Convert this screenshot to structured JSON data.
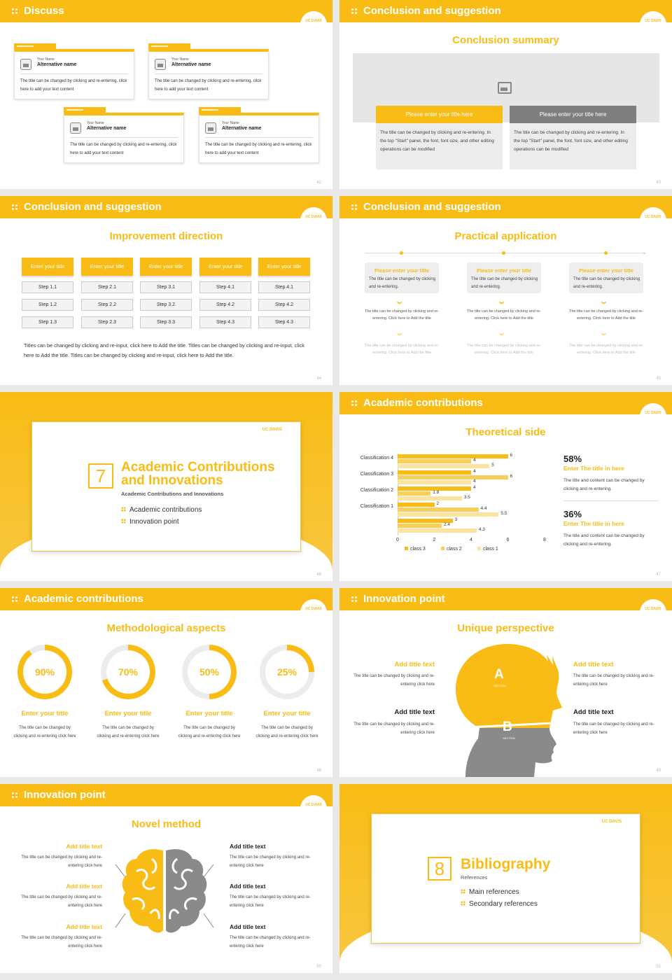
{
  "brand": "UC DAVIS",
  "colors": {
    "accent": "#f9bc15",
    "grey": "#8a8a8a"
  },
  "s42": {
    "title": "Discuss",
    "page": "42",
    "cards": [
      {
        "your_name": "Your Name",
        "alt": "Alternative name",
        "text": "The title can be changed by clicking and re-entering, click here to add your text content"
      },
      {
        "your_name": "Your Name",
        "alt": "Alternative name",
        "text": "The title can be changed by clicking and re-entering, click here to add your text content"
      },
      {
        "your_name": "Your Name",
        "alt": "Alternative name",
        "text": "The title can be changed by clicking and re-entering, click here to add your text content"
      },
      {
        "your_name": "Your Name",
        "alt": "Alternative name",
        "text": "The title can be changed by clicking and re-entering, click here to add your text content"
      }
    ]
  },
  "s43": {
    "title": "Conclusion and suggestion",
    "page": "43",
    "subtitle": "Conclusion summary",
    "boxes": [
      {
        "label": "Please enter your title here",
        "text": "The title can be changed by clicking and re-entering. In the top \"Start\" panel, the font, font size, and other editing operations can be modified"
      },
      {
        "label": "Please enter your title here",
        "text": "The title can be changed by clicking and re-entering. In the top \"Start\" panel, the font, font size, and other editing operations can be modified"
      }
    ]
  },
  "s44": {
    "title": "Conclusion and suggestion",
    "page": "44",
    "subtitle": "Improvement direction",
    "columns": [
      {
        "head": "Enter your title",
        "steps": [
          "Step 1.1",
          "Step 1.2",
          "Step 1.3"
        ]
      },
      {
        "head": "Enter your title",
        "steps": [
          "Step 2.1",
          "Step 2.2",
          "Step 2.3"
        ]
      },
      {
        "head": "Enter your title",
        "steps": [
          "Step 3.1",
          "Step 3.2",
          "Step 3.3"
        ]
      },
      {
        "head": "Enter your title",
        "steps": [
          "Step 4.1",
          "Step 4.2",
          "Step 4.3"
        ]
      },
      {
        "head": "Enter your title",
        "steps": [
          "Step 4.1",
          "Step 4.2",
          "Step 4.3"
        ]
      }
    ],
    "footer": "Titles can be changed by clicking and re-input, click here to Add the title. Titles can be changed by clicking and re-input, click here to Add the title. Titles can be changed by clicking and re-input, click here to Add the title."
  },
  "s45": {
    "title": "Conclusion and suggestion",
    "page": "45",
    "subtitle": "Practical application",
    "items": [
      {
        "head": "Please enter your title",
        "text": "The title can be changed by clicking and re-entering.",
        "sub1": "The title can be changed by clicking and re-entering. Click here to Add the title",
        "sub2": "The title can be changed by clicking and re-entering. Click here to Add the title"
      },
      {
        "head": "Please enter your title",
        "text": "The title can be changed by clicking and re-entering.",
        "sub1": "The title can be changed by clicking and re-entering. Click here to Add the title",
        "sub2": "The title can be changed by clicking and re-entering. Click here to Add the title"
      },
      {
        "head": "Please enter your title",
        "text": "The title can be changed by clicking and re-entering.",
        "sub1": "The title can be changed by clicking and re-entering. Click here to Add the title",
        "sub2": "The title can be changed by clicking and re-entering. Click here to Add the title"
      }
    ]
  },
  "s46": {
    "page": "46",
    "num": "7",
    "title1": "Academic Contributions",
    "title2": "and Innovations",
    "sub": "Academic Contributions and Innovations",
    "bullets": [
      "Academic contributions",
      "Innovation point"
    ]
  },
  "s47": {
    "title": "Academic contributions",
    "page": "47",
    "subtitle": "Theoretical side",
    "stats": [
      {
        "pct": "58%",
        "head": "Enter The title in here",
        "text": "The title and content can be changed by clicking and re-entering."
      },
      {
        "pct": "36%",
        "head": "Enter The title in here",
        "text": "The title and content can be changed by clicking and re-entering."
      }
    ]
  },
  "chart_data": {
    "type": "bar",
    "orientation": "horizontal",
    "categories": [
      "Classification 4",
      "Classification 3",
      "Classification 2",
      "Classification 1",
      ""
    ],
    "series": [
      {
        "name": "class 3",
        "values": [
          6,
          4,
          4,
          2,
          3
        ]
      },
      {
        "name": "class 2",
        "values": [
          4,
          6,
          1.8,
          4.4,
          2.4
        ]
      },
      {
        "name": "class 1",
        "values": [
          5,
          4,
          3.5,
          5.5,
          4.3
        ]
      }
    ],
    "xticks": [
      "0",
      "2",
      "4",
      "6",
      "8"
    ],
    "xlim": [
      0,
      8
    ],
    "legend": "bottom",
    "colors": [
      "#f9bc15",
      "#f8cf5c",
      "#fbe3a0"
    ]
  },
  "s48": {
    "title": "Academic contributions",
    "page": "48",
    "subtitle": "Methodological aspects",
    "rings": [
      {
        "pct": 90,
        "label": "90%",
        "head": "Enter your title",
        "text": "The title can be changed by clicking and re-entering click here"
      },
      {
        "pct": 70,
        "label": "70%",
        "head": "Enter your title",
        "text": "The title can be changed by clicking and re-entering click here"
      },
      {
        "pct": 50,
        "label": "50%",
        "head": "Enter your title",
        "text": "The title can be changed by clicking and re-entering click here"
      },
      {
        "pct": 25,
        "label": "25%",
        "head": "Enter your title",
        "text": "The title can be changed by clicking and re-entering click here"
      }
    ]
  },
  "s49": {
    "title": "Innovation point",
    "page": "49",
    "subtitle": "Unique perspective",
    "a": "A",
    "b": "B",
    "section": "SECTION",
    "left": [
      {
        "head": "Add title text",
        "text": "The title can be changed by clicking and re-entering click here"
      },
      {
        "head": "Add title text",
        "text": "The title can be changed by clicking and re-entering click here"
      }
    ],
    "right": [
      {
        "head": "Add title text",
        "text": "The title can be changed by clicking and re-entering click here"
      },
      {
        "head": "Add title text",
        "text": "The title can be changed by clicking and re-entering click here"
      }
    ]
  },
  "s50": {
    "title": "Innovation point",
    "page": "50",
    "subtitle": "Novel method",
    "left": [
      {
        "head": "Add title text",
        "text": "The title can be changed by clicking and re-entering click here"
      },
      {
        "head": "Add title text",
        "text": "The title can be changed by clicking and re-entering click here"
      },
      {
        "head": "Add title text",
        "text": "The title can be changed by clicking and re-entering click here"
      }
    ],
    "right": [
      {
        "head": "Add title text",
        "text": "The title can be changed by clicking and re-entering click here"
      },
      {
        "head": "Add title text",
        "text": "The title can be changed by clicking and re-entering click here"
      },
      {
        "head": "Add title text",
        "text": "The title can be changed by clicking and re-entering click here"
      }
    ]
  },
  "s51": {
    "page": "51",
    "num": "8",
    "title": "Bibliography",
    "sub": "References",
    "bullets": [
      "Main references",
      "Secondary references"
    ]
  }
}
